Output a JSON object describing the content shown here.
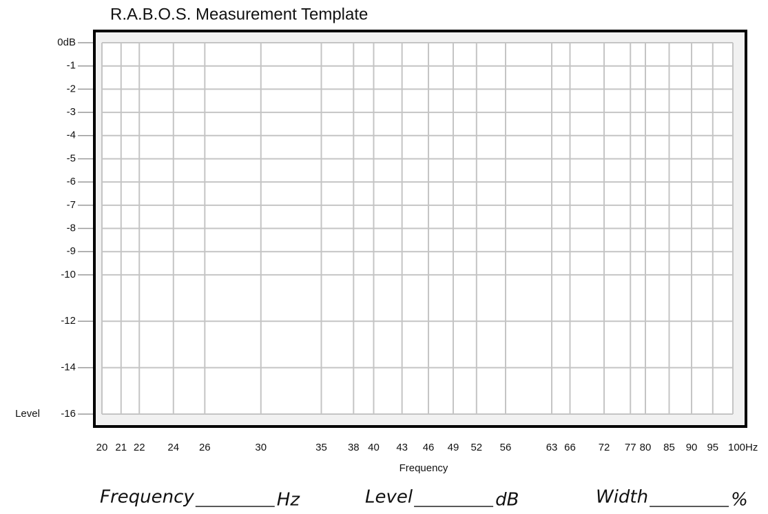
{
  "chart_data": {
    "type": "line",
    "title": "R.A.B.O.S. Measurement Template",
    "x_label": "Frequency",
    "y_label": "Level",
    "xscale": "log",
    "grid": true,
    "grid_color": "#c4c4c4",
    "xlim": [
      20,
      100
    ],
    "ylim": [
      -16,
      0
    ],
    "xticks": [
      20,
      21,
      22,
      24,
      26,
      30,
      35,
      38,
      40,
      43,
      46,
      49,
      52,
      56,
      63,
      66,
      72,
      77,
      80,
      85,
      90,
      95,
      {
        "value": 100,
        "label": "100Hz"
      }
    ],
    "yticks": [
      {
        "value": 0,
        "label": "0dB"
      },
      -1,
      -2,
      -3,
      -4,
      -5,
      -6,
      -7,
      -8,
      -9,
      -10,
      -12,
      -14,
      -16
    ],
    "fields": [
      {
        "label": "Frequency",
        "unit": "Hz"
      },
      {
        "label": "Level",
        "unit": "dB"
      },
      {
        "label": "Width",
        "unit": "%"
      }
    ]
  }
}
